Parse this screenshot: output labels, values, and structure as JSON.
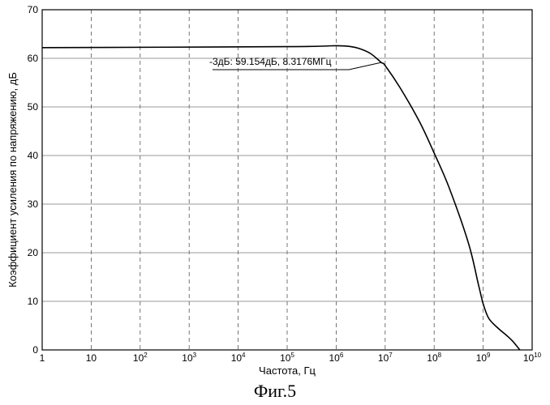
{
  "chart_data": {
    "type": "line",
    "title": "",
    "xlabel": "Частота, Гц",
    "ylabel": "Коэффициент усиления по напряжению, дБ",
    "xscale": "log",
    "xlim": [
      1,
      10000000000
    ],
    "ylim": [
      0,
      70
    ],
    "x_ticks": [
      {
        "base": "1",
        "exp": ""
      },
      {
        "base": "10",
        "exp": ""
      },
      {
        "base": "10",
        "exp": "2"
      },
      {
        "base": "10",
        "exp": "3"
      },
      {
        "base": "10",
        "exp": "4"
      },
      {
        "base": "10",
        "exp": "5"
      },
      {
        "base": "10",
        "exp": "6"
      },
      {
        "base": "10",
        "exp": "7"
      },
      {
        "base": "10",
        "exp": "8"
      },
      {
        "base": "10",
        "exp": "9"
      },
      {
        "base": "10",
        "exp": "10"
      }
    ],
    "y_ticks": [
      "0",
      "10",
      "20",
      "30",
      "40",
      "50",
      "60",
      "70"
    ],
    "grid": true,
    "series": [
      {
        "x": [
          1,
          100000,
          1000000,
          2000000,
          3000000,
          5000000,
          8317600,
          10000000,
          20000000,
          50000000,
          100000000,
          200000000,
          500000000,
          800000000,
          1000000000,
          1300000000,
          2000000000,
          3000000000,
          4000000000,
          5600000000
        ],
        "y": [
          62.2,
          62.4,
          62.6,
          62.4,
          62.0,
          61.0,
          59.154,
          58.5,
          54.0,
          47.0,
          40.5,
          33.5,
          22.0,
          13.5,
          9.5,
          6.5,
          4.5,
          3.0,
          1.8,
          0.0
        ]
      }
    ],
    "annotations": [
      {
        "text": "-3дБ: 59.154дБ, 8.3176МГц",
        "x": 8317600,
        "y": 59.154
      }
    ]
  },
  "caption": "Фиг.5"
}
